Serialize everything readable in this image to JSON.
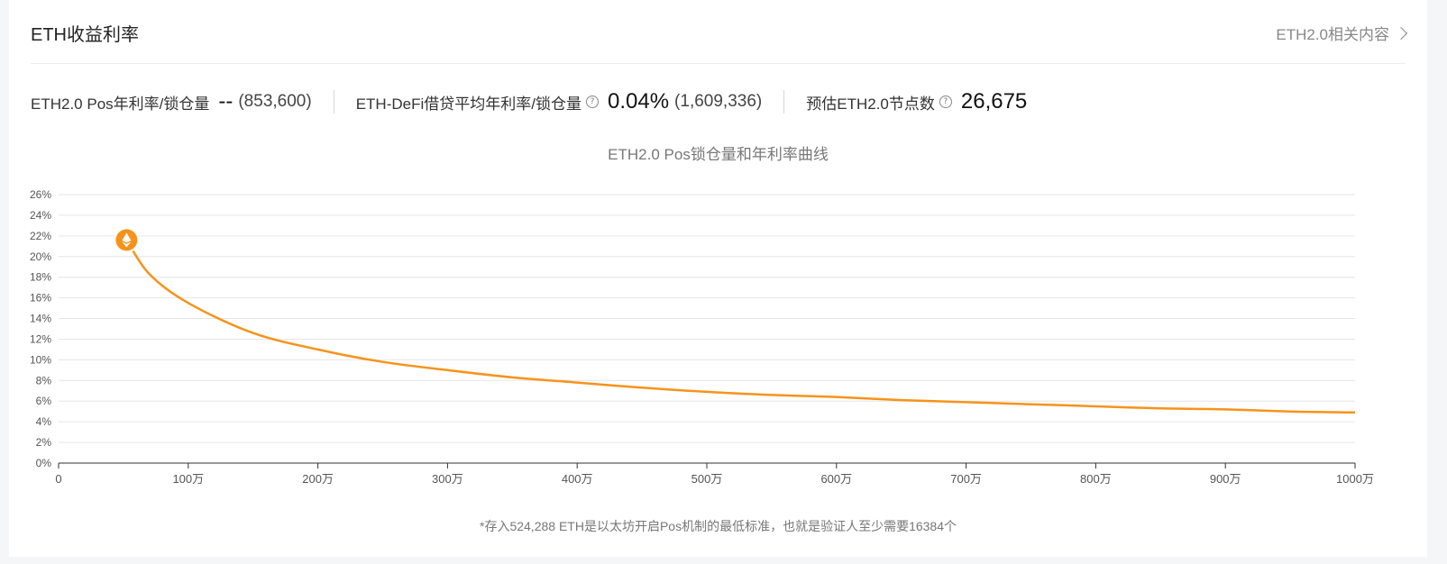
{
  "header": {
    "title": "ETH收益利率",
    "link_label": "ETH2.0相关内容"
  },
  "stats": [
    {
      "label": "ETH2.0 Pos年利率/锁仓量",
      "value": "--",
      "paren": "(853,600)",
      "help": false
    },
    {
      "label": "ETH-DeFi借贷平均年利率/锁仓量",
      "value": "0.04%",
      "paren": "(1,609,336)",
      "help": true
    },
    {
      "label": "预估ETH2.0节点数",
      "value": "26,675",
      "paren": "",
      "help": true
    }
  ],
  "help_icon_glyph": "?",
  "colors": {
    "line": "#f7931a",
    "grid": "#e6e6e6",
    "axis": "#333333"
  },
  "chart_data": {
    "type": "line",
    "title": "ETH2.0 Pos锁仓量和年利率曲线",
    "xlim": [
      0,
      10000000
    ],
    "ylim": [
      0,
      26
    ],
    "x_ticks": [
      0,
      1000000,
      2000000,
      3000000,
      4000000,
      5000000,
      6000000,
      7000000,
      8000000,
      9000000,
      10000000
    ],
    "x_tick_labels": [
      "0",
      "100万",
      "200万",
      "300万",
      "400万",
      "500万",
      "600万",
      "700万",
      "800万",
      "900万",
      "1000万"
    ],
    "y_ticks": [
      0,
      2,
      4,
      6,
      8,
      10,
      12,
      14,
      16,
      18,
      20,
      22,
      24,
      26
    ],
    "y_tick_labels": [
      "0%",
      "2%",
      "4%",
      "6%",
      "8%",
      "10%",
      "12%",
      "14%",
      "16%",
      "18%",
      "20%",
      "22%",
      "24%",
      "26%"
    ],
    "grid": true,
    "marker": {
      "x": 524288,
      "y": 21.6,
      "icon": "eth-diamond-icon"
    },
    "series": [
      {
        "x": [
          524288,
          700000,
          1000000,
          1500000,
          2000000,
          2500000,
          3000000,
          3500000,
          4000000,
          4500000,
          5000000,
          5500000,
          6000000,
          6500000,
          7000000,
          7500000,
          8000000,
          8500000,
          9000000,
          9500000,
          10000000
        ],
        "y": [
          21.6,
          18.3,
          15.5,
          12.6,
          11.0,
          9.8,
          9.0,
          8.3,
          7.8,
          7.3,
          6.9,
          6.6,
          6.4,
          6.1,
          5.9,
          5.7,
          5.5,
          5.3,
          5.2,
          5.0,
          4.9
        ]
      }
    ]
  },
  "footnote": "*存入524,288 ETH是以太坊开启Pos机制的最低标准，也就是验证人至少需要16384个"
}
